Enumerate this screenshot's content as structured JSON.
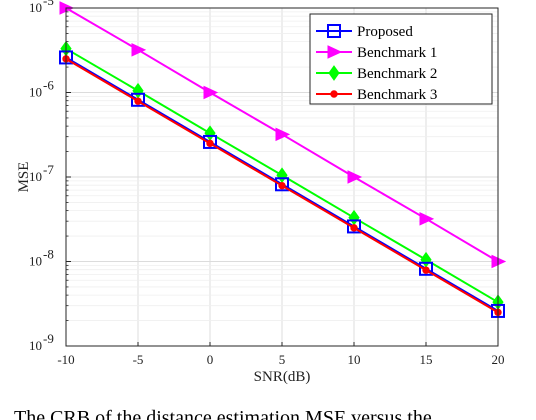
{
  "chart_data": {
    "type": "line",
    "title": "",
    "xlabel": "SNR(dB)",
    "ylabel": "MSE",
    "x": [
      -10,
      -5,
      0,
      5,
      10,
      15,
      20
    ],
    "xticks": [
      "-10",
      "-5",
      "0",
      "5",
      "10",
      "15",
      "20"
    ],
    "xlim": [
      -10,
      20
    ],
    "yscale": "log",
    "ylim": [
      1e-09,
      1e-05
    ],
    "yticks": [
      {
        "value": 1e-09,
        "base": "10",
        "exp": "-9"
      },
      {
        "value": 1e-08,
        "base": "10",
        "exp": "-8"
      },
      {
        "value": 1e-07,
        "base": "10",
        "exp": "-7"
      },
      {
        "value": 1e-06,
        "base": "10",
        "exp": "-6"
      },
      {
        "value": 1e-05,
        "base": "10",
        "exp": "-5"
      }
    ],
    "grid": true,
    "legend_position": "top-right",
    "series": [
      {
        "name": "Proposed",
        "color": "#0000ff",
        "marker": "square-open",
        "values": [
          2.6e-06,
          8.2e-07,
          2.6e-07,
          8.2e-08,
          2.6e-08,
          8.2e-09,
          2.6e-09
        ]
      },
      {
        "name": "Benchmark 1",
        "color": "#ff00ff",
        "marker": "triangle-right",
        "values": [
          1e-05,
          3.2e-06,
          1e-06,
          3.2e-07,
          1e-07,
          3.2e-08,
          1e-08
        ]
      },
      {
        "name": "Benchmark 2",
        "color": "#00ff00",
        "marker": "diamond",
        "values": [
          3.3e-06,
          1.05e-06,
          3.3e-07,
          1.05e-07,
          3.3e-08,
          1.05e-08,
          3.3e-09
        ]
      },
      {
        "name": "Benchmark 3",
        "color": "#ff0000",
        "marker": "dot",
        "values": [
          2.5e-06,
          7.9e-07,
          2.5e-07,
          7.9e-08,
          2.5e-08,
          7.9e-09,
          2.5e-09
        ]
      }
    ]
  },
  "caption": "The CRB of the distance estimation MSE versus the"
}
